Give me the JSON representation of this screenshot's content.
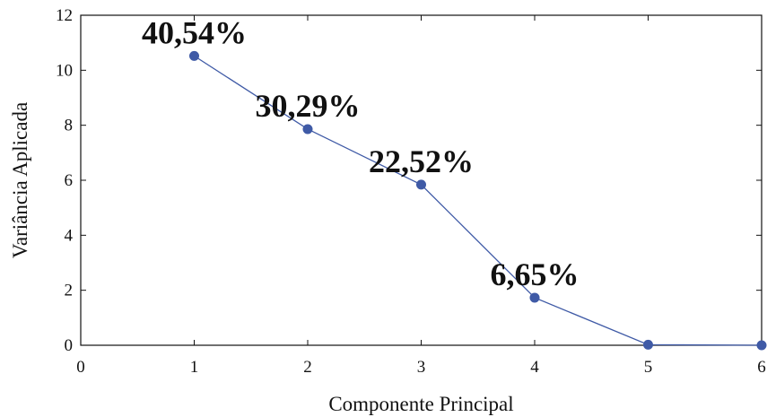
{
  "chart_data": {
    "type": "line",
    "title": "",
    "xlabel": "Componente Principal",
    "ylabel": "Variância Aplicada",
    "xlim": [
      0,
      6
    ],
    "ylim": [
      0,
      12
    ],
    "x_ticks": [
      "0",
      "1",
      "2",
      "3",
      "4",
      "5",
      "6"
    ],
    "y_ticks": [
      "0",
      "2",
      "4",
      "6",
      "8",
      "10",
      "12"
    ],
    "grid": false,
    "legend": "none",
    "series": [
      {
        "x": [
          1,
          2,
          3,
          4,
          5,
          6
        ],
        "values": [
          10.52,
          7.86,
          5.84,
          1.73,
          0.02,
          0.0
        ],
        "color": "#3f5aa6"
      }
    ],
    "annotations": [
      {
        "text": "40,54%",
        "x": 1,
        "y": 10.52
      },
      {
        "text": "30,29%",
        "x": 2,
        "y": 7.86
      },
      {
        "text": "22,52%",
        "x": 3,
        "y": 5.84
      },
      {
        "text": "6,65%",
        "x": 4,
        "y": 1.73
      }
    ]
  }
}
